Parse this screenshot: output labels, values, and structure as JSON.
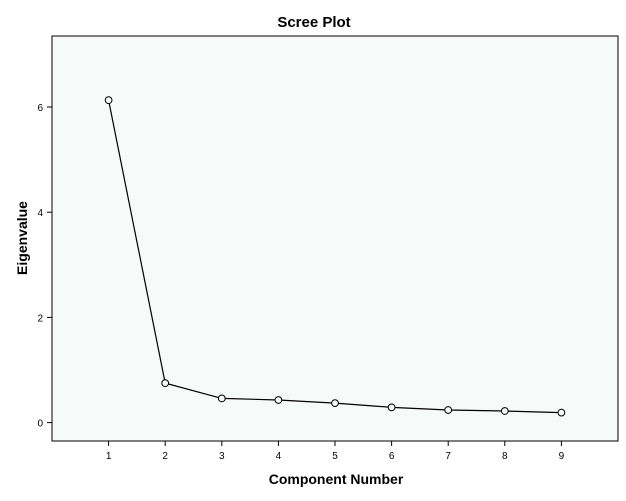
{
  "chart_data": {
    "type": "line",
    "title": "Scree Plot",
    "xlabel": "Component Number",
    "ylabel": "Eigenvalue",
    "x": [
      1,
      2,
      3,
      4,
      5,
      6,
      7,
      8,
      9
    ],
    "series": [
      {
        "values": [
          6.13,
          0.75,
          0.46,
          0.43,
          0.37,
          0.29,
          0.24,
          0.22,
          0.19
        ]
      }
    ],
    "xlim": [
      0,
      10
    ],
    "ylim": [
      -0.35,
      7.35
    ],
    "xticks": [
      "1",
      "2",
      "3",
      "4",
      "5",
      "6",
      "7",
      "8",
      "9"
    ],
    "yticks": [
      0,
      2,
      4,
      6
    ],
    "ytick_labels": [
      "0",
      "2",
      "4",
      "6"
    ],
    "grid": false,
    "marker": "open-circle",
    "colors": {
      "plot_background": "#f6faf8",
      "line": "#000000",
      "marker_fill": "#f6faf8"
    }
  }
}
